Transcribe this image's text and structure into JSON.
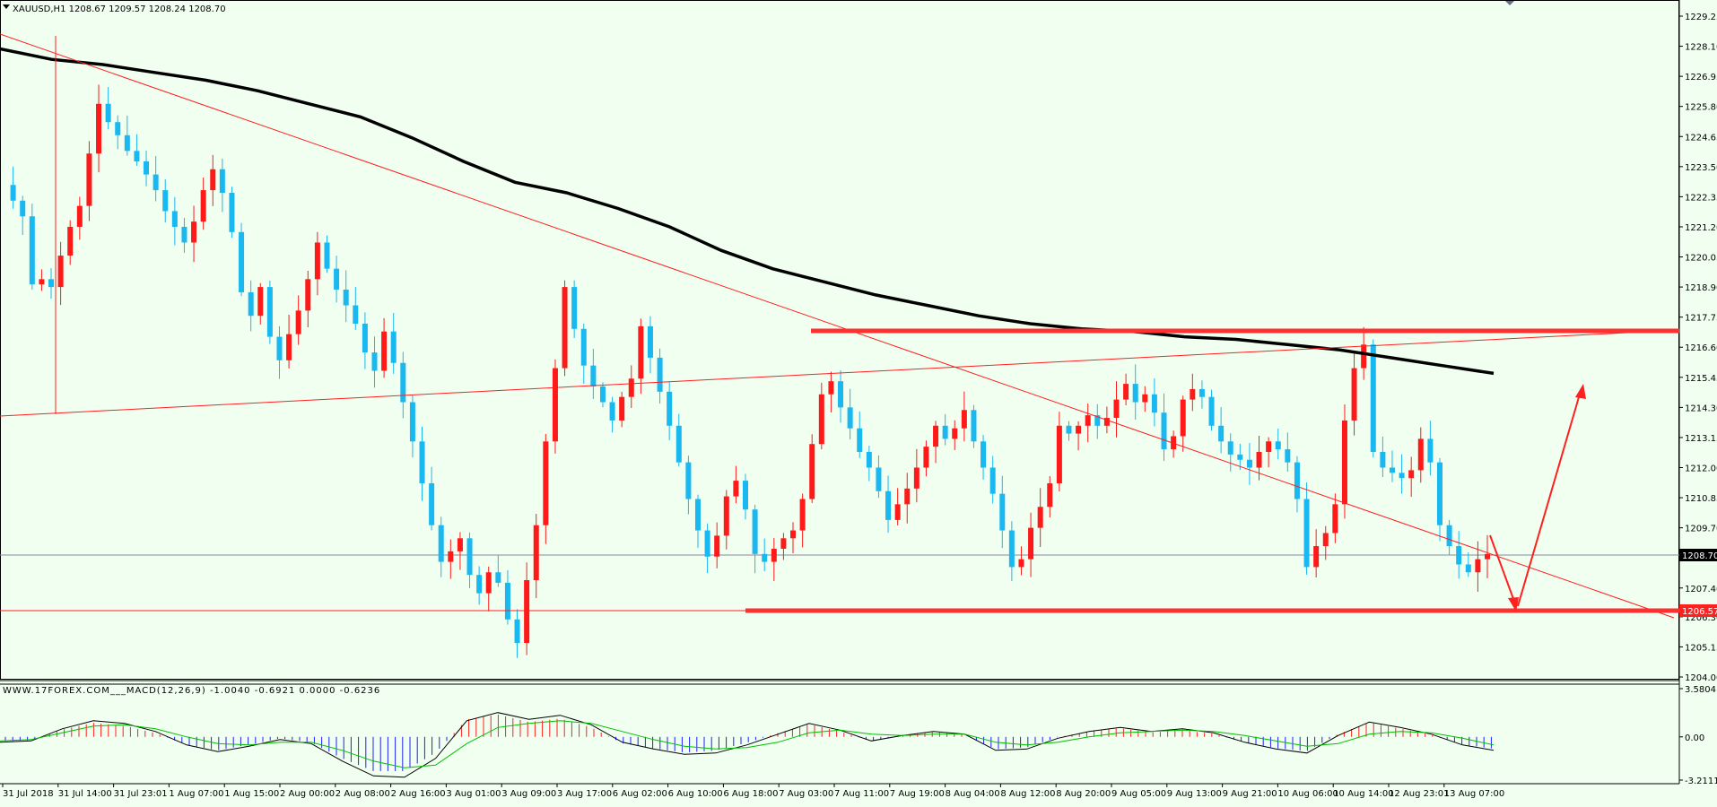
{
  "header": {
    "symbol_line": "XAUUSD,H1  1208.67 1209.57 1208.24 1208.70",
    "macd_line": "WWW.17FOREX.COM___MACD(12,26,9) -1.0040 -0.6921 0.0000 -0.6236"
  },
  "colors": {
    "background": "#f0fff0",
    "bull": "#ff1a1a",
    "bear": "#1ab8f0",
    "trendline": "#ff2020",
    "ma": "#000000",
    "macd_hist_pos": "#ff2020",
    "macd_hist_neg": "#2020ff",
    "macd_line": "#000000",
    "signal_line": "#00c000"
  },
  "price_tags": {
    "current": "1208.70",
    "level": "1206.57"
  },
  "chart_data": [
    {
      "type": "candlestick",
      "title": "XAUUSD,H1",
      "ylim": [
        1204.0,
        1229.25
      ],
      "y_ticks": [
        "1229.25",
        "1228.10",
        "1226.95",
        "1225.80",
        "1224.65",
        "1223.50",
        "1222.35",
        "1221.20",
        "1220.05",
        "1218.90",
        "1217.75",
        "1216.60",
        "1215.45",
        "1214.30",
        "1213.15",
        "1212.00",
        "1210.85",
        "1209.70",
        "1208.55",
        "1207.40",
        "1206.30",
        "1205.15",
        "1204.00"
      ],
      "x_ticks": [
        "31 Jul 2018",
        "31 Jul 14:00",
        "31 Jul 23:01",
        "1 Aug 07:00",
        "1 Aug 15:00",
        "2 Aug 00:00",
        "2 Aug 08:00",
        "2 Aug 16:00",
        "3 Aug 01:00",
        "3 Aug 09:00",
        "3 Aug 17:00",
        "6 Aug 02:00",
        "6 Aug 10:00",
        "6 Aug 18:00",
        "7 Aug 03:00",
        "7 Aug 11:00",
        "7 Aug 19:00",
        "8 Aug 04:00",
        "8 Aug 12:00",
        "8 Aug 20:00",
        "9 Aug 05:00",
        "9 Aug 13:00",
        "9 Aug 21:00",
        "10 Aug 06:00",
        "10 Aug 14:00",
        "12 Aug 23:01",
        "13 Aug 07:00"
      ],
      "close_path": [
        1222.8,
        1222.2,
        1221.6,
        1219.0,
        1219.2,
        1218.9,
        1220.1,
        1221.2,
        1222.0,
        1224.0,
        1225.9,
        1225.2,
        1224.7,
        1224.1,
        1223.7,
        1223.2,
        1222.6,
        1221.8,
        1221.2,
        1220.6,
        1221.4,
        1222.6,
        1223.4,
        1222.5,
        1221.0,
        1218.7,
        1217.8,
        1218.9,
        1217.0,
        1216.1,
        1217.1,
        1218.0,
        1219.2,
        1220.6,
        1219.6,
        1218.8,
        1218.2,
        1217.5,
        1216.4,
        1215.7,
        1217.2,
        1216.0,
        1214.5,
        1213.0,
        1211.4,
        1209.8,
        1208.4,
        1208.8,
        1209.3,
        1207.9,
        1207.2,
        1208.0,
        1207.6,
        1206.2,
        1205.3,
        1207.7,
        1209.8,
        1213.0,
        1215.8,
        1218.9,
        1217.3,
        1215.9,
        1215.1,
        1214.5,
        1213.8,
        1214.7,
        1215.4,
        1217.4,
        1216.2,
        1214.9,
        1213.6,
        1212.2,
        1210.8,
        1209.6,
        1208.6,
        1209.4,
        1210.9,
        1211.5,
        1210.4,
        1208.7,
        1208.4,
        1208.9,
        1209.3,
        1209.6,
        1210.8,
        1212.9,
        1214.8,
        1215.3,
        1214.3,
        1213.5,
        1212.6,
        1212.0,
        1211.1,
        1210.0,
        1210.6,
        1211.2,
        1212.0,
        1212.8,
        1213.6,
        1213.1,
        1213.5,
        1214.2,
        1213.0,
        1212.0,
        1211.0,
        1209.6,
        1208.2,
        1208.5,
        1209.7,
        1210.5,
        1211.4,
        1213.6,
        1213.3,
        1213.6,
        1214.0,
        1213.6,
        1213.9,
        1214.6,
        1215.2,
        1214.5,
        1214.8,
        1214.1,
        1212.7,
        1213.2,
        1214.6,
        1215.0,
        1214.7,
        1213.6,
        1213.0,
        1212.5,
        1212.3,
        1212.0,
        1212.6,
        1213.0,
        1212.7,
        1212.2,
        1210.8,
        1208.2,
        1209.0,
        1209.5,
        1210.6,
        1213.8,
        1215.8,
        1216.7,
        1212.6,
        1212.0,
        1211.8,
        1211.6,
        1211.9,
        1213.1,
        1212.2,
        1209.8,
        1209.0,
        1208.3,
        1208.0,
        1208.5,
        1208.7
      ],
      "ma_path": [
        1228.0,
        1227.6,
        1227.4,
        1227.1,
        1226.8,
        1226.4,
        1225.9,
        1225.4,
        1224.6,
        1223.7,
        1222.9,
        1222.5,
        1221.9,
        1221.2,
        1220.3,
        1219.6,
        1219.1,
        1218.6,
        1218.2,
        1217.8,
        1217.5,
        1217.3,
        1217.2,
        1217.0,
        1216.9,
        1216.7,
        1216.5,
        1216.2,
        1215.9,
        1215.6
      ],
      "support": 1206.57,
      "resistance": 1217.1
    },
    {
      "type": "bar",
      "title": "MACD(12,26,9)",
      "ylim": [
        -3.2111,
        3.5804
      ],
      "y_ticks": [
        "3.5804",
        "0.00",
        "-3.2111"
      ],
      "macd_path": [
        -0.4,
        -0.3,
        0.6,
        1.2,
        1.0,
        0.4,
        -0.6,
        -1.1,
        -0.7,
        -0.2,
        -0.5,
        -1.8,
        -2.9,
        -3.0,
        -1.6,
        1.2,
        1.8,
        1.3,
        1.6,
        0.9,
        -0.4,
        -0.9,
        -1.3,
        -1.2,
        -0.6,
        0.2,
        1.0,
        0.5,
        -0.3,
        0.1,
        0.4,
        0.2,
        -1.0,
        -0.9,
        -0.1,
        0.4,
        0.7,
        0.4,
        0.6,
        0.3,
        -0.4,
        -0.9,
        -1.2,
        0.1,
        1.1,
        0.7,
        0.2,
        -0.6,
        -1.0
      ],
      "signal_path": [
        -0.3,
        -0.2,
        0.3,
        0.8,
        0.9,
        0.6,
        0.0,
        -0.5,
        -0.6,
        -0.4,
        -0.4,
        -1.0,
        -1.8,
        -2.3,
        -2.1,
        -0.5,
        0.7,
        1.0,
        1.2,
        1.0,
        0.4,
        -0.2,
        -0.7,
        -0.9,
        -0.8,
        -0.4,
        0.3,
        0.5,
        0.2,
        0.1,
        0.2,
        0.2,
        -0.4,
        -0.6,
        -0.4,
        0.0,
        0.3,
        0.4,
        0.5,
        0.4,
        0.1,
        -0.3,
        -0.7,
        -0.5,
        0.2,
        0.4,
        0.3,
        -0.1,
        -0.6
      ]
    }
  ]
}
